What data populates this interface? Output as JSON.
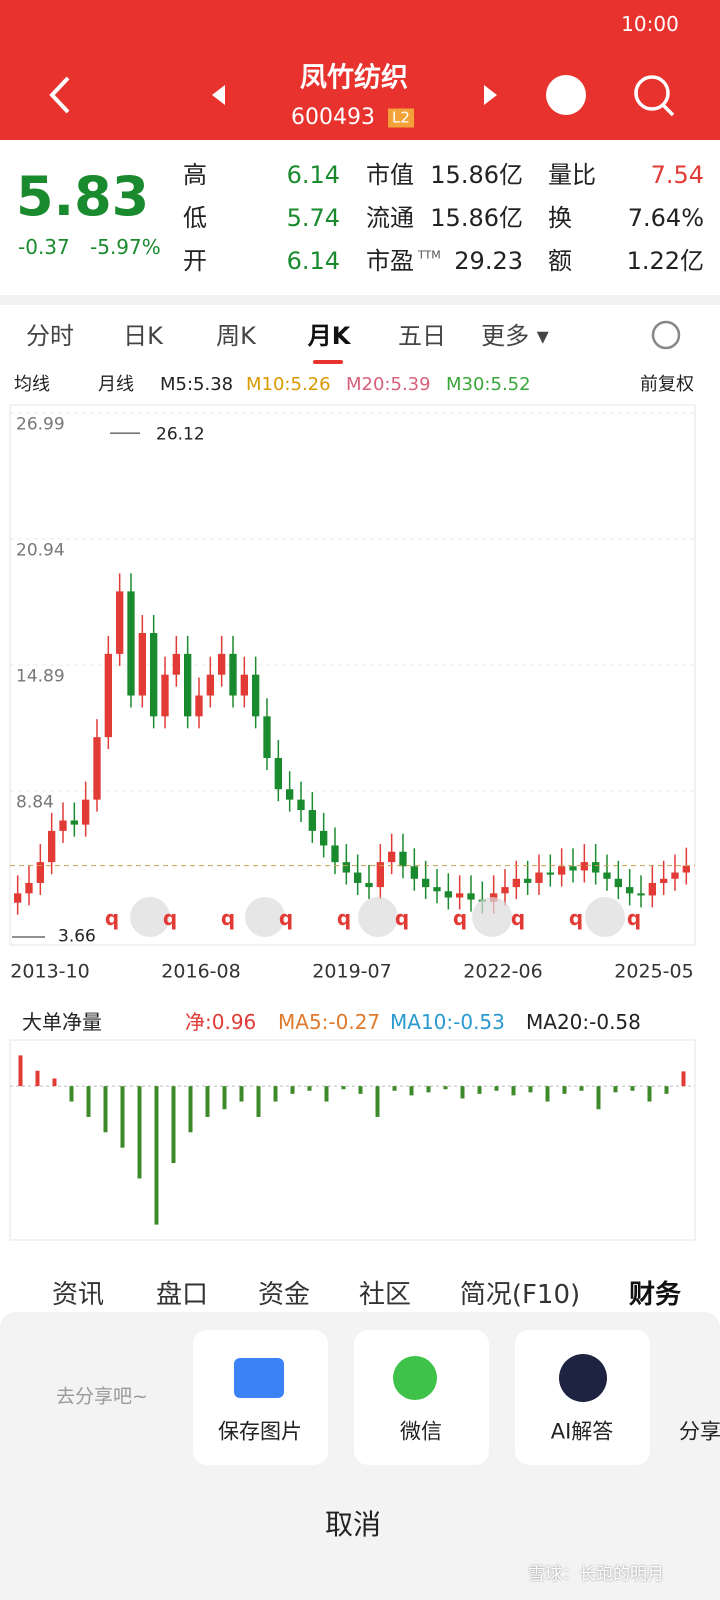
{
  "status_bar": {
    "time": "10:00"
  },
  "header": {
    "title": "凤竹纺织",
    "code": "600493",
    "badge": "L2"
  },
  "quote": {
    "price": "5.83",
    "change": "-0.37",
    "change_pct": "-5.97%",
    "rows": [
      {
        "k1": "高",
        "v1": "6.14",
        "k2": "市值",
        "v2": "15.86亿",
        "k3": "量比",
        "v3": "7.54"
      },
      {
        "k1": "低",
        "v1": "5.74",
        "k2": "流通",
        "v2": "15.86亿",
        "k3": "换",
        "v3": "7.64%"
      },
      {
        "k1": "开",
        "v1": "6.14",
        "k2": "市盈",
        "k2sup": "TTM",
        "v2": "29.23",
        "k3": "额",
        "v3": "1.22亿"
      }
    ]
  },
  "tabs": [
    "分时",
    "日K",
    "周K",
    "月K",
    "五日",
    "更多"
  ],
  "ma_bar": {
    "left": "均线",
    "period": "月线",
    "m5": "M5:5.38",
    "m10": "M10:5.26",
    "m20": "M20:5.39",
    "m30": "M30:5.52",
    "right": "前复权"
  },
  "price_chart": {
    "ylim": [
      2.02,
      27.95
    ],
    "yticks": [
      26.99,
      20.94,
      14.89,
      8.84
    ],
    "high_label": 26.12,
    "low_label": 3.66,
    "last": 5.83,
    "x_labels": [
      "2013-10",
      "2016-08",
      "2019-07",
      "2022-06",
      "2025-05"
    ],
    "q_markers": [
      "q",
      "q",
      "q",
      "q",
      "q",
      "q",
      "q",
      "q",
      "q",
      "q"
    ],
    "monthly_close": [
      4.5,
      5,
      6,
      7.5,
      8,
      7.8,
      9,
      12,
      16,
      19,
      14,
      17,
      13,
      15,
      16,
      13,
      14,
      15,
      16,
      14,
      15,
      13,
      11,
      9.5,
      9,
      8.5,
      7.5,
      6.8,
      6,
      5.5,
      5,
      4.8,
      6,
      6.5,
      5.8,
      5.2,
      4.8,
      4.6,
      4.3,
      4.5,
      4.2,
      4.1,
      4.5,
      4.8,
      5.2,
      5,
      5.5,
      5.4,
      5.8,
      5.6,
      6,
      5.5,
      5.2,
      4.8,
      4.5,
      4.4,
      5,
      5.2,
      5.5,
      5.83
    ]
  },
  "flow_chart": {
    "legend": {
      "name": "大单净量",
      "net": "净:0.96",
      "ma5": "MA5:-0.27",
      "ma10": "MA10:-0.53",
      "ma20": "MA20:-0.58"
    },
    "ylim": [
      -10,
      3
    ],
    "values": [
      2,
      1,
      0.5,
      -1,
      -2,
      -3,
      -4,
      -6,
      -9,
      -5,
      -3,
      -2,
      -1.5,
      -1,
      -2,
      -1,
      -0.5,
      -0.3,
      -1,
      -0.2,
      -0.5,
      -2,
      -0.3,
      -0.6,
      -0.4,
      -0.2,
      -0.8,
      -0.5,
      -0.3,
      -0.6,
      -0.4,
      -1,
      -0.5,
      -0.3,
      -1.5,
      -0.4,
      -0.3,
      -1,
      -0.5,
      0.96
    ]
  },
  "bottom_tabs": [
    "资讯",
    "盘口",
    "资金",
    "社区",
    "简况(F10)",
    "财务"
  ],
  "share": {
    "hint": "去分享吧~",
    "buttons": [
      "保存图片",
      "微信",
      "AI解答",
      "分享"
    ],
    "cancel": "取消",
    "watermark": "雪球：长跑的明月"
  }
}
